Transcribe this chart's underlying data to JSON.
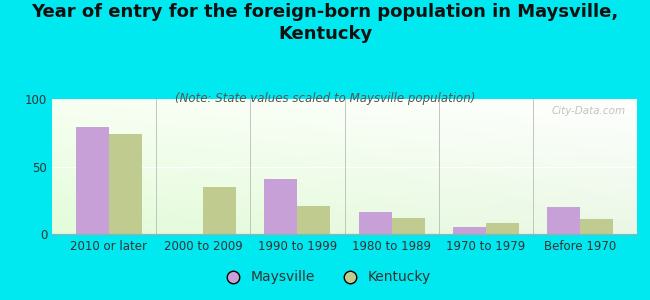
{
  "title": "Year of entry for the foreign-born population in Maysville,\nKentucky",
  "subtitle": "(Note: State values scaled to Maysville population)",
  "categories": [
    "2010 or later",
    "2000 to 2009",
    "1990 to 1999",
    "1980 to 1989",
    "1970 to 1979",
    "Before 1970"
  ],
  "maysville_values": [
    79,
    0,
    41,
    16,
    5,
    20
  ],
  "kentucky_values": [
    74,
    35,
    21,
    12,
    8,
    11
  ],
  "maysville_color": "#c8a0d8",
  "kentucky_color": "#c0cb90",
  "bar_width": 0.35,
  "ylim": [
    0,
    100
  ],
  "yticks": [
    0,
    50,
    100
  ],
  "background_color": "#00e8f0",
  "watermark": "City-Data.com",
  "title_fontsize": 13,
  "subtitle_fontsize": 8.5,
  "tick_fontsize": 8.5,
  "legend_fontsize": 10
}
